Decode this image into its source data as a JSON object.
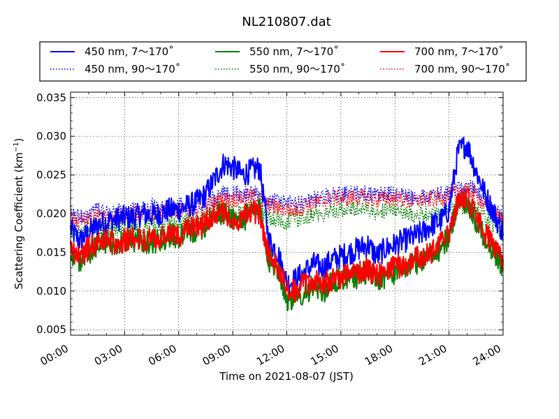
{
  "chart_data": {
    "type": "line",
    "title": "NL210807.dat",
    "xlabel": "Time on 2021-08-07 (JST)",
    "ylabel_main": "Scattering Coefficient (km",
    "ylabel_exp": "−1",
    "ylabel_close": ")",
    "x_unit": "hour",
    "xlim": [
      0,
      24
    ],
    "ylim": [
      0.0043,
      0.0357
    ],
    "x_ticks": [
      0,
      3,
      6,
      9,
      12,
      15,
      18,
      21,
      24
    ],
    "x_tick_labels": [
      "00:00",
      "03:00",
      "06:00",
      "09:00",
      "12:00",
      "15:00",
      "18:00",
      "21:00",
      "24:00"
    ],
    "y_ticks": [
      0.005,
      0.01,
      0.015,
      0.02,
      0.025,
      0.03,
      0.035
    ],
    "y_tick_labels": [
      "0.005",
      "0.010",
      "0.015",
      "0.020",
      "0.025",
      "0.030",
      "0.035"
    ],
    "grid": true,
    "legend_placement": "top",
    "legend_columns": 3,
    "x": [
      0,
      0.5,
      1,
      1.5,
      2,
      2.5,
      3,
      3.5,
      4,
      4.5,
      5,
      5.5,
      6,
      6.5,
      7,
      7.5,
      8,
      8.5,
      9,
      9.5,
      10,
      10.5,
      11,
      11.5,
      12,
      12.5,
      13,
      13.5,
      14,
      14.5,
      15,
      15.5,
      16,
      16.5,
      17,
      17.5,
      18,
      18.5,
      19,
      19.5,
      20,
      20.5,
      21,
      21.5,
      22,
      22.5,
      23,
      23.5,
      24
    ],
    "series": [
      {
        "name": "450 nm, 7～170˚",
        "color": "#0000ff",
        "style": "solid",
        "width": 2,
        "values": [
          0.018,
          0.0165,
          0.0175,
          0.0185,
          0.019,
          0.0192,
          0.0195,
          0.0195,
          0.02,
          0.0198,
          0.02,
          0.0205,
          0.0205,
          0.021,
          0.0215,
          0.0225,
          0.0245,
          0.0265,
          0.026,
          0.025,
          0.0255,
          0.026,
          0.0165,
          0.015,
          0.011,
          0.0115,
          0.0125,
          0.0135,
          0.013,
          0.014,
          0.0145,
          0.015,
          0.0155,
          0.016,
          0.0145,
          0.0155,
          0.016,
          0.0165,
          0.017,
          0.0175,
          0.0185,
          0.019,
          0.0205,
          0.028,
          0.029,
          0.0255,
          0.0225,
          0.02,
          0.0175
        ]
      },
      {
        "name": "450 nm, 90～170˚",
        "color": "#0000ff",
        "style": "dotted",
        "width": 1.6,
        "values": [
          0.02,
          0.0195,
          0.02,
          0.0205,
          0.02,
          0.0205,
          0.02,
          0.0205,
          0.0205,
          0.021,
          0.0205,
          0.021,
          0.021,
          0.021,
          0.021,
          0.0215,
          0.022,
          0.0225,
          0.0225,
          0.0225,
          0.0225,
          0.0225,
          0.0215,
          0.0215,
          0.0215,
          0.021,
          0.0215,
          0.022,
          0.022,
          0.0225,
          0.0225,
          0.0225,
          0.0228,
          0.0225,
          0.0222,
          0.0225,
          0.0225,
          0.0222,
          0.022,
          0.0222,
          0.0222,
          0.0225,
          0.0225,
          0.0235,
          0.0235,
          0.023,
          0.0215,
          0.0205,
          0.0195
        ]
      },
      {
        "name": "550 nm, 7～170˚",
        "color": "#008000",
        "style": "solid",
        "width": 2,
        "values": [
          0.015,
          0.014,
          0.015,
          0.016,
          0.0162,
          0.016,
          0.0162,
          0.0165,
          0.0165,
          0.0163,
          0.0165,
          0.017,
          0.017,
          0.0175,
          0.018,
          0.0185,
          0.02,
          0.02,
          0.0195,
          0.019,
          0.02,
          0.0205,
          0.014,
          0.013,
          0.009,
          0.009,
          0.01,
          0.0105,
          0.01,
          0.011,
          0.0115,
          0.0115,
          0.012,
          0.0125,
          0.0115,
          0.012,
          0.0125,
          0.013,
          0.0135,
          0.014,
          0.015,
          0.0155,
          0.017,
          0.0215,
          0.0215,
          0.019,
          0.017,
          0.015,
          0.013
        ]
      },
      {
        "name": "550 nm, 90～170˚",
        "color": "#008000",
        "style": "dotted",
        "width": 1.6,
        "values": [
          0.018,
          0.0175,
          0.018,
          0.0182,
          0.018,
          0.0182,
          0.0182,
          0.0185,
          0.0185,
          0.0188,
          0.0185,
          0.019,
          0.019,
          0.019,
          0.019,
          0.0195,
          0.0198,
          0.02,
          0.02,
          0.0202,
          0.0205,
          0.0205,
          0.0195,
          0.0192,
          0.019,
          0.0192,
          0.0195,
          0.02,
          0.02,
          0.0205,
          0.0205,
          0.0205,
          0.0208,
          0.0205,
          0.02,
          0.0205,
          0.0205,
          0.02,
          0.0198,
          0.02,
          0.02,
          0.0202,
          0.0205,
          0.021,
          0.021,
          0.0205,
          0.0195,
          0.0185,
          0.0175
        ]
      },
      {
        "name": "700 nm, 7～170˚",
        "color": "#ff0000",
        "style": "solid",
        "width": 2,
        "values": [
          0.0155,
          0.0145,
          0.0155,
          0.0165,
          0.0165,
          0.0163,
          0.0165,
          0.0168,
          0.0168,
          0.0166,
          0.0168,
          0.0172,
          0.0172,
          0.0178,
          0.0182,
          0.0188,
          0.0198,
          0.02,
          0.0195,
          0.0192,
          0.0205,
          0.02,
          0.0145,
          0.0135,
          0.01,
          0.01,
          0.011,
          0.0112,
          0.0108,
          0.0115,
          0.0118,
          0.012,
          0.0125,
          0.0128,
          0.012,
          0.0125,
          0.013,
          0.0135,
          0.014,
          0.0145,
          0.015,
          0.016,
          0.0175,
          0.022,
          0.022,
          0.0195,
          0.0175,
          0.016,
          0.014
        ]
      },
      {
        "name": "700 nm, 90～170˚",
        "color": "#ff0000",
        "style": "dotted",
        "width": 1.6,
        "values": [
          0.0195,
          0.019,
          0.0195,
          0.0198,
          0.0195,
          0.0198,
          0.0198,
          0.02,
          0.02,
          0.0202,
          0.02,
          0.0205,
          0.0205,
          0.0205,
          0.0205,
          0.021,
          0.0215,
          0.0218,
          0.0218,
          0.022,
          0.0222,
          0.0222,
          0.021,
          0.0208,
          0.0205,
          0.0205,
          0.021,
          0.0215,
          0.0215,
          0.022,
          0.022,
          0.022,
          0.0222,
          0.022,
          0.0218,
          0.022,
          0.022,
          0.0218,
          0.0215,
          0.0218,
          0.0218,
          0.022,
          0.0222,
          0.023,
          0.023,
          0.0225,
          0.021,
          0.02,
          0.019
        ]
      }
    ]
  }
}
